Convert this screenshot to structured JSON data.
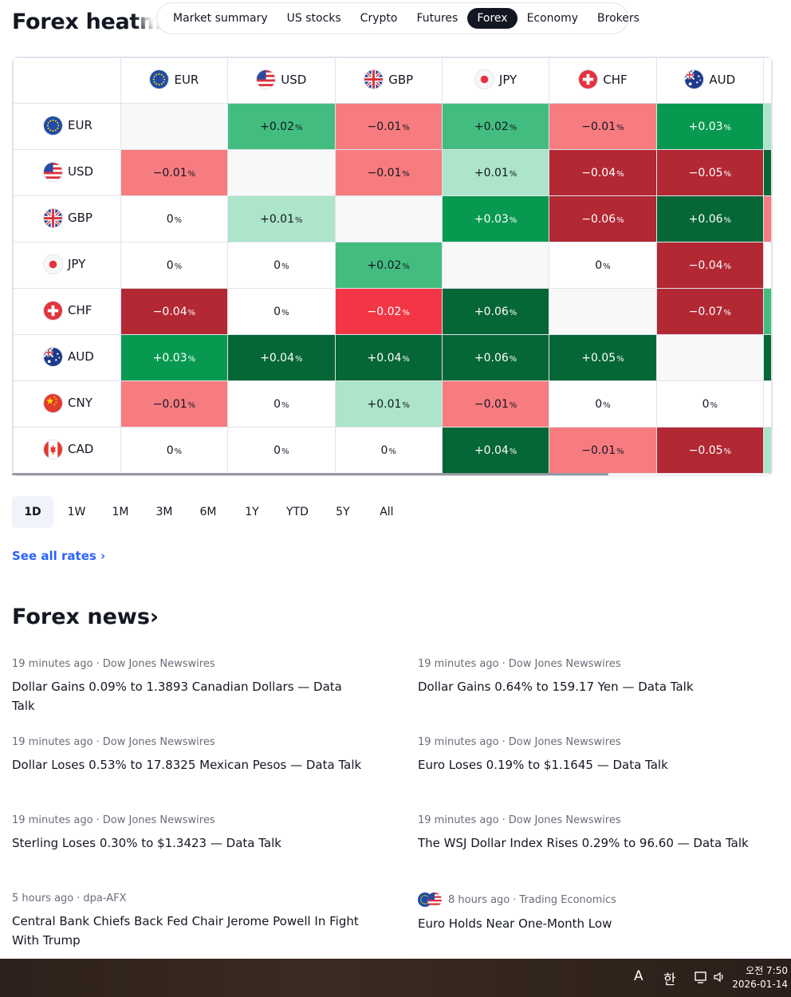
{
  "title": "Forex heatmap",
  "tabs": [
    "Market summary",
    "US stocks",
    "Crypto",
    "Futures",
    "Forex",
    "Economy",
    "Brokers"
  ],
  "activeTab": "Forex",
  "columns": [
    "EUR",
    "USD",
    "GBP",
    "JPY",
    "CHF",
    "AUD"
  ],
  "rows": [
    {
      "label": "EUR",
      "values": [
        "",
        "+0.02",
        "−0.01",
        "+0.02",
        "−0.01",
        "+0.03"
      ],
      "colors": [
        "#f8f8f8",
        "#42bd7f",
        "#f77c80",
        "#42bd7f",
        "#f77c80",
        "#089950"
      ],
      "edge": "#ace5c9"
    },
    {
      "label": "USD",
      "values": [
        "−0.01",
        "",
        "−0.01",
        "+0.01",
        "−0.04",
        "−0.05"
      ],
      "colors": [
        "#f77c80",
        "#f8f8f8",
        "#f77c80",
        "#ace5c9",
        "#b22833",
        "#b22833"
      ],
      "edge": "#056636"
    },
    {
      "label": "GBP",
      "values": [
        "0",
        "+0.01",
        "",
        "+0.03",
        "−0.06",
        "+0.06"
      ],
      "colors": [
        "#ffffff",
        "#ace5c9",
        "#f8f8f8",
        "#089950",
        "#b22833",
        "#056636"
      ],
      "edge": "#f77c80"
    },
    {
      "label": "JPY",
      "values": [
        "0",
        "0",
        "+0.02",
        "",
        "0",
        "−0.04"
      ],
      "colors": [
        "#ffffff",
        "#ffffff",
        "#42bd7f",
        "#f8f8f8",
        "#ffffff",
        "#b22833"
      ],
      "edge": "#ffffff"
    },
    {
      "label": "CHF",
      "values": [
        "−0.04",
        "0",
        "−0.02",
        "+0.06",
        "",
        "−0.07"
      ],
      "colors": [
        "#b22833",
        "#ffffff",
        "#f23645",
        "#056636",
        "#f8f8f8",
        "#b22833"
      ],
      "edge": "#42bd7f"
    },
    {
      "label": "AUD",
      "values": [
        "+0.03",
        "+0.04",
        "+0.04",
        "+0.06",
        "+0.05",
        ""
      ],
      "colors": [
        "#089950",
        "#056636",
        "#056636",
        "#056636",
        "#056636",
        "#f8f8f8"
      ],
      "edge": "#056636"
    },
    {
      "label": "CNY",
      "values": [
        "−0.01",
        "0",
        "+0.01",
        "−0.01",
        "0",
        "0"
      ],
      "colors": [
        "#f77c80",
        "#ffffff",
        "#ace5c9",
        "#f77c80",
        "#ffffff",
        "#ffffff"
      ],
      "edge": "#ffffff"
    },
    {
      "label": "CAD",
      "values": [
        "0",
        "0",
        "0",
        "+0.04",
        "−0.01",
        "−0.05"
      ],
      "colors": [
        "#ffffff",
        "#ffffff",
        "#ffffff",
        "#056636",
        "#f77c80",
        "#b22833"
      ],
      "edge": "#ace5c9"
    }
  ],
  "pctSymbol": "%",
  "periods": [
    "1D",
    "1W",
    "1M",
    "3M",
    "6M",
    "1Y",
    "YTD",
    "5Y",
    "All"
  ],
  "activePeriod": "1D",
  "seeAll": "See all rates ›",
  "newsTitle": "Forex news›",
  "news": [
    {
      "time": "19 minutes ago",
      "source": "Dow Jones Newswires",
      "headline": "Dollar Gains 0.09% to 1.3893 Canadian Dollars — Data Talk",
      "flags": false
    },
    {
      "time": "19 minutes ago",
      "source": "Dow Jones Newswires",
      "headline": "Dollar Gains 0.64% to 159.17 Yen — Data Talk",
      "flags": false
    },
    {
      "time": "19 minutes ago",
      "source": "Dow Jones Newswires",
      "headline": "Dollar Loses 0.53% to 17.8325 Mexican Pesos — Data Talk",
      "flags": false
    },
    {
      "time": "19 minutes ago",
      "source": "Dow Jones Newswires",
      "headline": "Euro Loses 0.19% to $1.1645 — Data Talk",
      "flags": false
    },
    {
      "time": "19 minutes ago",
      "source": "Dow Jones Newswires",
      "headline": "Sterling Loses 0.30% to $1.3423 — Data Talk",
      "flags": false
    },
    {
      "time": "19 minutes ago",
      "source": "Dow Jones Newswires",
      "headline": "The WSJ Dollar Index Rises 0.29% to 96.60 — Data Talk",
      "flags": false
    },
    {
      "time": "5 hours ago",
      "source": "dpa-AFX",
      "headline": "Central Bank Chiefs Back Fed Chair Jerome Powell In Fight With Trump",
      "flags": false
    },
    {
      "time": "8 hours ago",
      "source": "Trading Economics",
      "headline": "Euro Holds Near One-Month Low",
      "flags": true
    }
  ],
  "taskbar": {
    "ime1": "A",
    "ime2": "한",
    "time": "오전 7:50",
    "date": "2026-01-14"
  }
}
